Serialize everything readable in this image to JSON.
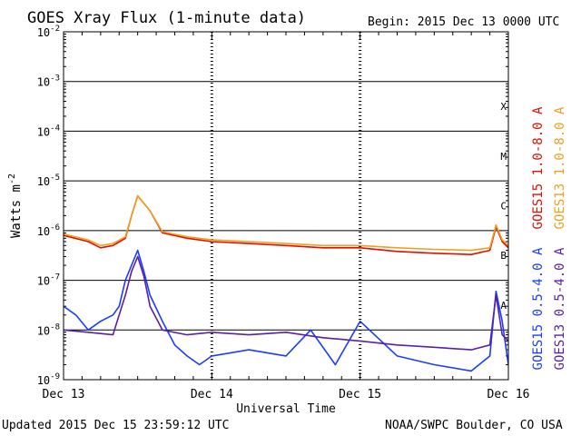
{
  "header": {
    "title": "GOES Xray Flux (1-minute data)",
    "begin": "Begin:  2015 Dec 13 0000 UTC"
  },
  "footer": {
    "updated": "Updated 2015 Dec 15 23:59:12 UTC",
    "credit": "NOAA/SWPC Boulder, CO USA"
  },
  "colors": {
    "goes15_long": "#dd1100",
    "goes13_long": "#f0a020",
    "goes15_short": "#1a3cff",
    "goes13_short": "#5a1fa8"
  },
  "chart_data": {
    "type": "line",
    "xlabel": "Universal Time",
    "ylabel": "Watts m-2",
    "y_scale": "log",
    "ylim": [
      1e-09,
      0.01
    ],
    "xlim": [
      "2015-12-13",
      "2015-12-16"
    ],
    "x_ticks": [
      "Dec 13",
      "Dec 14",
      "Dec 15",
      "Dec 16"
    ],
    "y_ticks": [
      "10-9",
      "10-8",
      "10-7",
      "10-6",
      "10-5",
      "10-4",
      "10-3",
      "10-2"
    ],
    "flare_classes": [
      "A",
      "B",
      "C",
      "M",
      "X"
    ],
    "grid": true,
    "series": [
      {
        "name": "GOES15 1.0-8.0 A",
        "color": "#dd1100",
        "x": [
          "2015-12-13 00:00",
          "2015-12-13 04:00",
          "2015-12-13 06:00",
          "2015-12-13 08:00",
          "2015-12-13 10:00",
          "2015-12-13 11:00",
          "2015-12-13 12:00",
          "2015-12-13 14:00",
          "2015-12-13 16:00",
          "2015-12-13 20:00",
          "2015-12-14 00:00",
          "2015-12-14 06:00",
          "2015-12-14 12:00",
          "2015-12-14 18:00",
          "2015-12-15 00:00",
          "2015-12-15 06:00",
          "2015-12-15 12:00",
          "2015-12-15 18:00",
          "2015-12-15 21:00",
          "2015-12-15 22:00",
          "2015-12-15 23:00",
          "2015-12-16 00:00"
        ],
        "y": [
          8e-07,
          6e-07,
          4.5e-07,
          5e-07,
          7e-07,
          2e-06,
          5e-06,
          2.5e-06,
          9e-07,
          7e-07,
          6e-07,
          5.5e-07,
          5e-07,
          4.5e-07,
          4.5e-07,
          3.8e-07,
          3.5e-07,
          3.3e-07,
          4e-07,
          1.2e-06,
          6e-07,
          4.5e-07
        ]
      },
      {
        "name": "GOES13 1.0-8.0 A",
        "color": "#f0a020",
        "x": [
          "2015-12-13 00:00",
          "2015-12-13 04:00",
          "2015-12-13 06:00",
          "2015-12-13 08:00",
          "2015-12-13 10:00",
          "2015-12-13 11:00",
          "2015-12-13 12:00",
          "2015-12-13 14:00",
          "2015-12-13 16:00",
          "2015-12-13 20:00",
          "2015-12-14 00:00",
          "2015-12-14 06:00",
          "2015-12-14 12:00",
          "2015-12-14 18:00",
          "2015-12-15 00:00",
          "2015-12-15 06:00",
          "2015-12-15 12:00",
          "2015-12-15 18:00",
          "2015-12-15 21:00",
          "2015-12-15 22:00",
          "2015-12-15 23:00",
          "2015-12-16 00:00"
        ],
        "y": [
          8.5e-07,
          6.5e-07,
          5e-07,
          5.5e-07,
          7.5e-07,
          2e-06,
          5e-06,
          2.5e-06,
          9.5e-07,
          7.5e-07,
          6.5e-07,
          6e-07,
          5.5e-07,
          5e-07,
          5e-07,
          4.5e-07,
          4.2e-07,
          4e-07,
          4.5e-07,
          1.3e-06,
          6.5e-07,
          5e-07
        ]
      },
      {
        "name": "GOES15 0.5-4.0 A",
        "color": "#1a3cff",
        "x": [
          "2015-12-13 00:00",
          "2015-12-13 02:00",
          "2015-12-13 04:00",
          "2015-12-13 06:00",
          "2015-12-13 08:00",
          "2015-12-13 09:00",
          "2015-12-13 10:00",
          "2015-12-13 11:00",
          "2015-12-13 12:00",
          "2015-12-13 13:00",
          "2015-12-13 14:00",
          "2015-12-13 16:00",
          "2015-12-13 18:00",
          "2015-12-13 20:00",
          "2015-12-13 22:00",
          "2015-12-14 00:00",
          "2015-12-14 06:00",
          "2015-12-14 12:00",
          "2015-12-14 16:00",
          "2015-12-14 20:00",
          "2015-12-15 00:00",
          "2015-12-15 06:00",
          "2015-12-15 12:00",
          "2015-12-15 18:00",
          "2015-12-15 21:00",
          "2015-12-15 22:00",
          "2015-12-15 23:00",
          "2015-12-16 00:00"
        ],
        "y": [
          3e-08,
          2e-08,
          1e-08,
          1.5e-08,
          2e-08,
          3e-08,
          1e-07,
          2e-07,
          4e-07,
          1.5e-07,
          5e-08,
          1.5e-08,
          5e-09,
          3e-09,
          2e-09,
          3e-09,
          4e-09,
          3e-09,
          1e-08,
          2e-09,
          1.5e-08,
          3e-09,
          2e-09,
          1.5e-09,
          3e-09,
          6e-08,
          1.5e-08,
          2e-09
        ]
      },
      {
        "name": "GOES13 0.5-4.0 A",
        "color": "#5a1fa8",
        "x": [
          "2015-12-13 00:00",
          "2015-12-13 04:00",
          "2015-12-13 08:00",
          "2015-12-13 10:00",
          "2015-12-13 11:00",
          "2015-12-13 12:00",
          "2015-12-13 13:00",
          "2015-12-13 14:00",
          "2015-12-13 16:00",
          "2015-12-13 20:00",
          "2015-12-14 00:00",
          "2015-12-14 06:00",
          "2015-12-14 12:00",
          "2015-12-14 18:00",
          "2015-12-15 00:00",
          "2015-12-15 06:00",
          "2015-12-15 12:00",
          "2015-12-15 18:00",
          "2015-12-15 21:00",
          "2015-12-15 22:00",
          "2015-12-15 23:00",
          "2015-12-16 00:00"
        ],
        "y": [
          1e-08,
          9e-09,
          8e-09,
          5e-08,
          1.5e-07,
          3e-07,
          1.2e-07,
          3e-08,
          1e-08,
          8e-09,
          9e-09,
          8e-09,
          9e-09,
          7e-09,
          6e-09,
          5e-09,
          4.5e-09,
          4e-09,
          5e-09,
          5e-08,
          8e-09,
          6e-09
        ]
      }
    ]
  }
}
